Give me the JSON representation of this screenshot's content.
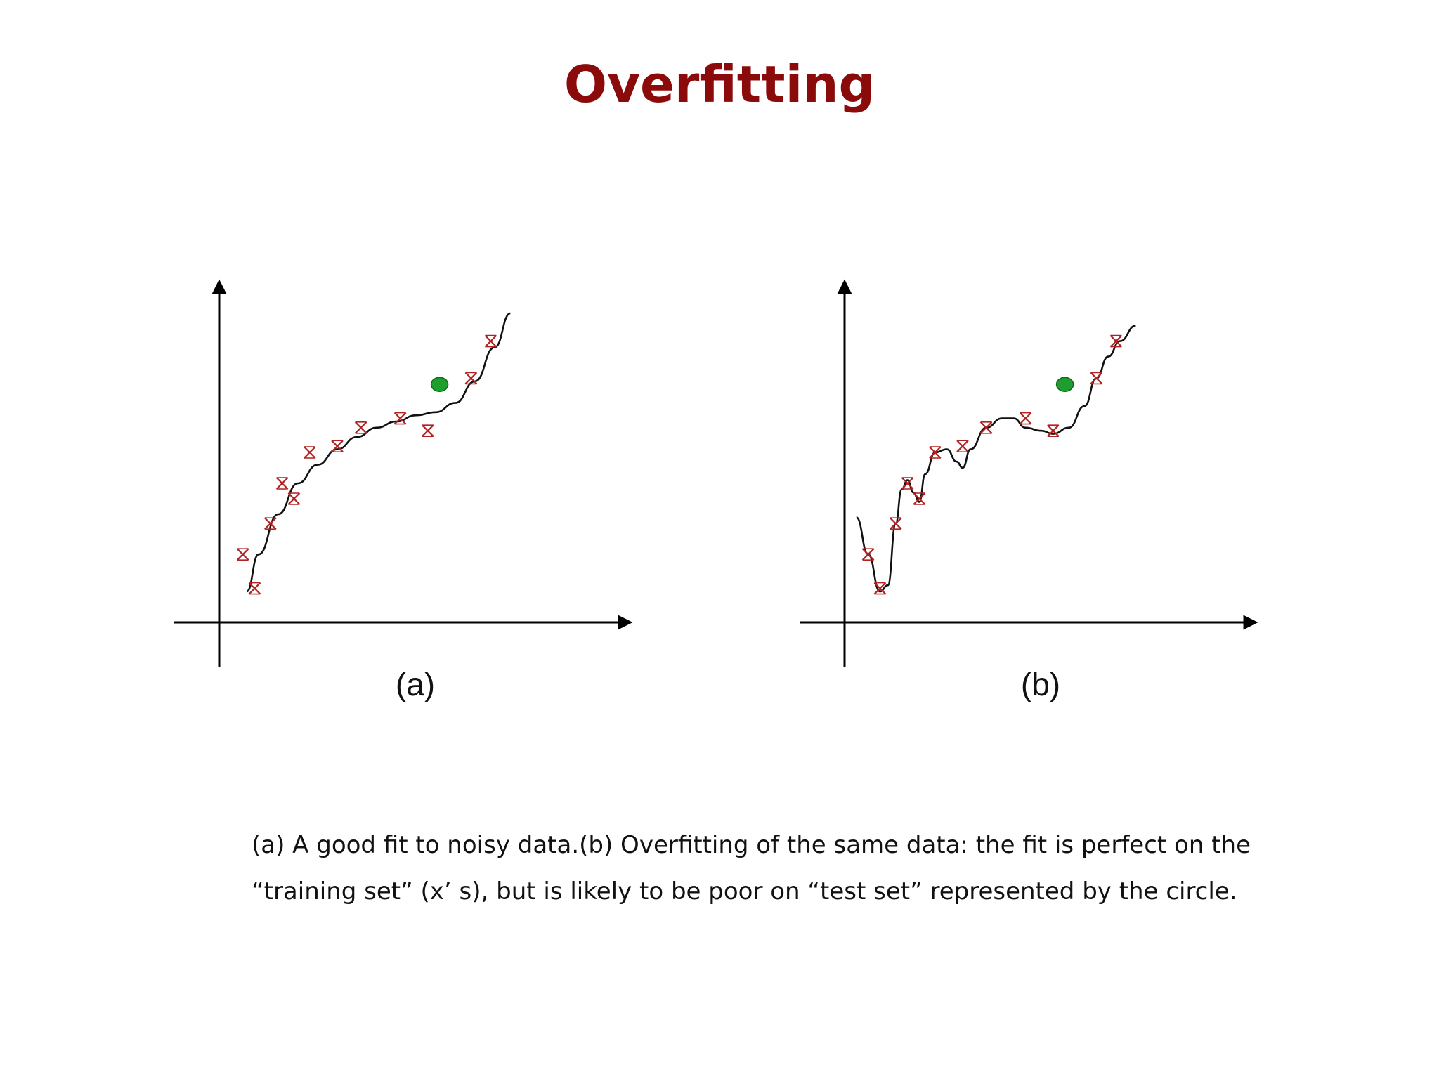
{
  "title": "Overfitting",
  "caption": {
    "line1": "(a) A good fit to noisy data.(b) Overfitting of the same data: the fit is perfect on the",
    "line2": "“training set” (x’ s), but is likely to be poor on “test set” represented by the circle."
  },
  "colors": {
    "title": "#8b0a0a",
    "training_marker": "#b22222",
    "test_point": "#1e9e2e",
    "curve": "#111111"
  },
  "chart_data": [
    {
      "type": "scatter",
      "panel_label": "(a)",
      "title": "",
      "xlabel": "",
      "ylabel": "",
      "xlim": [
        0,
        10
      ],
      "ylim": [
        0,
        10
      ],
      "grid": false,
      "training_points": {
        "marker": "x",
        "x": [
          0.6,
          0.9,
          1.3,
          1.6,
          1.9,
          2.3,
          3.0,
          3.6,
          4.6,
          5.3,
          6.4,
          6.9
        ],
        "y": [
          2.2,
          1.1,
          3.2,
          4.5,
          4.0,
          5.5,
          5.7,
          6.3,
          6.6,
          6.2,
          7.9,
          9.1
        ]
      },
      "fit_curve": {
        "x": [
          0.7,
          1.0,
          1.5,
          2.0,
          2.5,
          3.0,
          3.5,
          4.0,
          4.5,
          5.0,
          5.5,
          6.0,
          6.5,
          7.0,
          7.4
        ],
        "y": [
          1.0,
          2.2,
          3.5,
          4.5,
          5.1,
          5.6,
          6.0,
          6.3,
          6.5,
          6.7,
          6.8,
          7.1,
          7.8,
          8.9,
          10.0
        ]
      },
      "test_point": {
        "x": 5.6,
        "y": 7.7
      }
    },
    {
      "type": "scatter",
      "panel_label": "(b)",
      "title": "",
      "xlabel": "",
      "ylabel": "",
      "xlim": [
        0,
        10
      ],
      "ylim": [
        0,
        10
      ],
      "grid": false,
      "training_points": {
        "marker": "x",
        "x": [
          0.6,
          0.9,
          1.3,
          1.6,
          1.9,
          2.3,
          3.0,
          3.6,
          4.6,
          5.3,
          6.4,
          6.9
        ],
        "y": [
          2.2,
          1.1,
          3.2,
          4.5,
          4.0,
          5.5,
          5.7,
          6.3,
          6.6,
          6.2,
          7.9,
          9.1
        ]
      },
      "fit_curve": {
        "x": [
          0.3,
          0.6,
          0.9,
          1.1,
          1.3,
          1.45,
          1.6,
          1.75,
          1.9,
          2.05,
          2.3,
          2.6,
          2.85,
          3.0,
          3.2,
          3.6,
          4.0,
          4.3,
          4.6,
          5.0,
          5.3,
          5.7,
          6.1,
          6.4,
          6.7,
          7.0,
          7.4
        ],
        "y": [
          3.4,
          2.2,
          1.0,
          1.2,
          3.2,
          4.3,
          4.6,
          4.2,
          3.9,
          4.8,
          5.5,
          5.6,
          5.2,
          5.0,
          5.6,
          6.3,
          6.6,
          6.6,
          6.3,
          6.2,
          6.1,
          6.3,
          7.0,
          7.9,
          8.6,
          9.1,
          9.6
        ]
      },
      "test_point": {
        "x": 5.6,
        "y": 7.7
      }
    }
  ]
}
